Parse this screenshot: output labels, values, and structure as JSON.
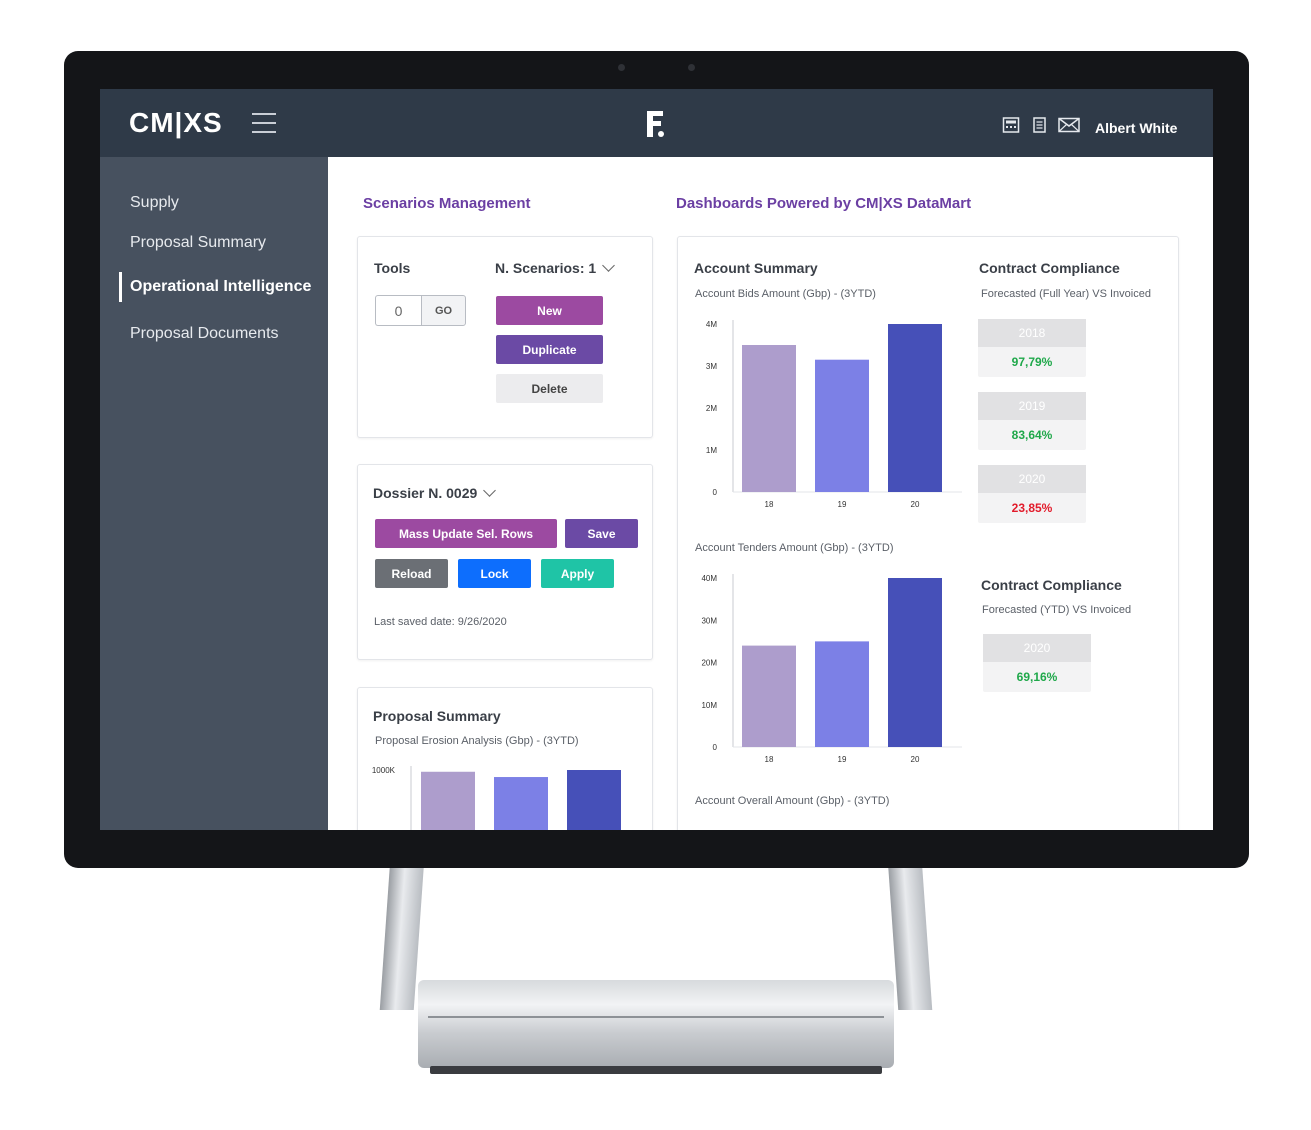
{
  "app": {
    "logo": "CM|XS",
    "user_name": "Albert White"
  },
  "icons": {
    "menu": "hamburger-icon",
    "brand": "brand-logo-icon",
    "calculator": "calculator-icon",
    "document": "document-icon",
    "mail": "mail-icon"
  },
  "sidebar": {
    "items": [
      {
        "label": "Supply"
      },
      {
        "label": "Proposal Summary"
      },
      {
        "label": "Operational Intelligence",
        "active": true
      },
      {
        "label": "Proposal Documents"
      }
    ]
  },
  "scenarios": {
    "title": "Scenarios Management",
    "tools_label": "Tools",
    "scenarios_count": "N. Scenarios: 1",
    "go_input_value": "0",
    "go_label": "GO",
    "new_label": "New",
    "duplicate_label": "Duplicate",
    "delete_label": "Delete"
  },
  "dossier": {
    "title": "Dossier N. 0029",
    "mass_update_label": "Mass Update Sel. Rows",
    "save_label": "Save",
    "reload_label": "Reload",
    "lock_label": "Lock",
    "apply_label": "Apply",
    "last_saved": "Last saved date: 9/26/2020"
  },
  "proposal_summary": {
    "title": "Proposal Summary",
    "subtitle": "Proposal Erosion Analysis (Gbp) - (3YTD)"
  },
  "dashboards": {
    "title": "Dashboards Powered by CM|XS DataMart",
    "account_summary_title": "Account Summary",
    "bids_subtitle": "Account Bids Amount (Gbp) - (3YTD)",
    "tenders_subtitle": "Account Tenders Amount (Gbp) - (3YTD)",
    "overall_subtitle": "Account Overall Amount (Gbp) - (3YTD)",
    "compliance_fy": {
      "title": "Contract Compliance",
      "subtitle": "Forecasted (Full Year) VS Invoiced",
      "items": [
        {
          "year": "2018",
          "value": "97,79%",
          "status": "positive"
        },
        {
          "year": "2019",
          "value": "83,64%",
          "status": "positive"
        },
        {
          "year": "2020",
          "value": "23,85%",
          "status": "negative"
        }
      ]
    },
    "compliance_ytd": {
      "title": "Contract Compliance",
      "subtitle": "Forecasted (YTD) VS Invoiced",
      "items": [
        {
          "year": "2020",
          "value": "69,16%",
          "status": "positive"
        }
      ]
    }
  },
  "colors": {
    "topbar": "#2f3a48",
    "sidebar": "#47515f",
    "accent_purple": "#9c4aa1",
    "dark_purple": "#6b4aa5",
    "blue": "#0d6efd",
    "teal": "#1fc4a6",
    "gray_button": "#6b6f75",
    "positive": "#1fa84a",
    "negative": "#e21b2b",
    "bar_1": "#ad9dcc",
    "bar_2": "#7c80e6",
    "bar_3": "#4650b8"
  },
  "chart_data": [
    {
      "type": "bar",
      "title": "Account Bids Amount (Gbp) - (3YTD)",
      "categories": [
        "18",
        "19",
        "20"
      ],
      "values": [
        3500000,
        3150000,
        4000000
      ],
      "yticks": [
        "0",
        "1M",
        "2M",
        "3M",
        "4M"
      ],
      "ylim": [
        0,
        4000000
      ],
      "grid": false
    },
    {
      "type": "bar",
      "title": "Account Tenders Amount (Gbp) - (3YTD)",
      "categories": [
        "18",
        "19",
        "20"
      ],
      "values": [
        24000000,
        25000000,
        40000000
      ],
      "yticks": [
        "0",
        "10M",
        "20M",
        "30M",
        "40M"
      ],
      "ylim": [
        0,
        40000000
      ],
      "grid": false
    },
    {
      "type": "bar",
      "title": "Proposal Erosion Analysis (Gbp) - (3YTD)",
      "categories": [
        "",
        "",
        ""
      ],
      "values": [
        980000,
        920000,
        1000000
      ],
      "yticks": [
        "1000K"
      ],
      "ylim": [
        0,
        1000000
      ],
      "grid": false
    }
  ]
}
